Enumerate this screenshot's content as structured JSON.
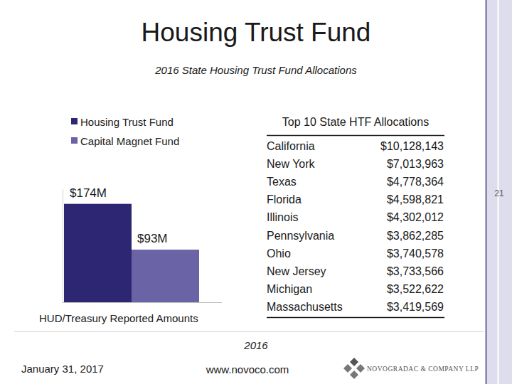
{
  "slide": {
    "title": "Housing Trust Fund",
    "subtitle": "2016 State Housing Trust Fund Allocations",
    "year": "2016",
    "date": "January 31, 2017",
    "url": "www.novoco.com",
    "company": "NOVOGRADAC & COMPANY LLP",
    "page": "21"
  },
  "chart_data": {
    "type": "bar",
    "xlabel": "HUD/Treasury Reported Amounts",
    "categories": [
      null
    ],
    "series": [
      {
        "name": "Housing Trust Fund",
        "color": "#2d2672",
        "values": [
          174
        ],
        "value_labels": [
          "$174M"
        ]
      },
      {
        "name": "Capital Magnet Fund",
        "color": "#6a64a6",
        "values": [
          93
        ],
        "value_labels": [
          "$93M"
        ]
      }
    ],
    "ylim": [
      0,
      200
    ],
    "legend": "top-left",
    "data_labels": true,
    "tick_labels": false
  },
  "table": {
    "title": "Top 10 State HTF Allocations",
    "rows": [
      [
        "California",
        "$10,128,143"
      ],
      [
        "New York",
        "$7,013,963"
      ],
      [
        "Texas",
        "$4,778,364"
      ],
      [
        "Florida",
        "$4,598,821"
      ],
      [
        "Illinois",
        "$4,302,012"
      ],
      [
        "Pennsylvania",
        "$3,862,285"
      ],
      [
        "Ohio",
        "$3,740,578"
      ],
      [
        "New Jersey",
        "$3,733,566"
      ],
      [
        "Michigan",
        "$3,522,622"
      ],
      [
        "Massachusetts",
        "$3,419,569"
      ]
    ]
  }
}
